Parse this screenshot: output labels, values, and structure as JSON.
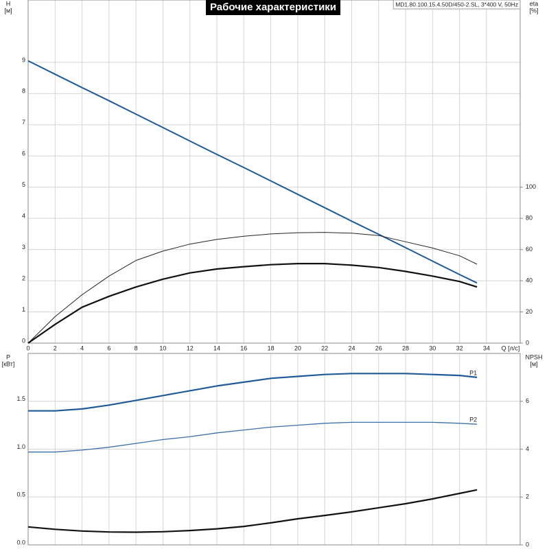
{
  "chart_data": [
    {
      "type": "line",
      "title": "Рабочие характеристики",
      "subtitle": "MD1.80.100.15.4.50D/450-2.SL, 3*400 V, 50Hz",
      "ylabel": "H",
      "yunit": "[м]",
      "y2label": "eta",
      "y2unit": "[%]",
      "xlabel": "Q [л/с]",
      "x": [
        0,
        2,
        4,
        6,
        8,
        10,
        12,
        14,
        16,
        18,
        20,
        22,
        24,
        26,
        28,
        30,
        32,
        33.3
      ],
      "series": [
        {
          "color": "#1f5a96",
          "values": [
            9.05,
            8.62,
            8.19,
            7.77,
            7.34,
            6.91,
            6.48,
            6.05,
            5.63,
            5.2,
            4.77,
            4.34,
            3.91,
            3.49,
            3.06,
            2.63,
            2.2,
            1.93
          ]
        },
        {
          "color": "#222222",
          "axis": "y2",
          "values": [
            0,
            17,
            31,
            43,
            53,
            59,
            63.5,
            66.5,
            68.5,
            70,
            70.8,
            71,
            70.5,
            69,
            65,
            61,
            56,
            50.6
          ]
        },
        {
          "color": "#111111",
          "axis": "y2",
          "values": [
            0,
            12,
            23,
            30,
            36,
            41,
            45,
            47.5,
            49,
            50.3,
            51,
            51,
            50,
            48.5,
            46,
            43,
            39.5,
            36
          ]
        }
      ],
      "xlim": [
        0,
        36.5
      ],
      "xticks": [
        0,
        2,
        4,
        6,
        8,
        10,
        12,
        14,
        16,
        18,
        20,
        22,
        24,
        26,
        28,
        30,
        32,
        34
      ],
      "ylim": [
        0,
        11
      ],
      "yticks": [
        0,
        1,
        2,
        3,
        4,
        5,
        6,
        7,
        8,
        9
      ],
      "y2lim": [
        0,
        220
      ],
      "y2ticks": [
        0,
        20,
        40,
        60,
        80,
        100
      ],
      "grid": true
    },
    {
      "type": "line",
      "ylabel": "P",
      "yunit": "[кВт]",
      "y2label": "NPSH",
      "y2unit": "[м]",
      "x": [
        0,
        2,
        4,
        6,
        8,
        10,
        12,
        14,
        16,
        18,
        20,
        22,
        24,
        26,
        28,
        30,
        32,
        33.3
      ],
      "series": [
        {
          "name": "P1",
          "color": "#1f5a96",
          "values": [
            1.4,
            1.4,
            1.42,
            1.46,
            1.51,
            1.56,
            1.61,
            1.66,
            1.7,
            1.74,
            1.76,
            1.78,
            1.79,
            1.79,
            1.79,
            1.78,
            1.77,
            1.75
          ]
        },
        {
          "name": "P2",
          "color": "#3a6ea5",
          "values": [
            0.97,
            0.97,
            0.99,
            1.02,
            1.06,
            1.1,
            1.13,
            1.17,
            1.2,
            1.23,
            1.25,
            1.27,
            1.28,
            1.28,
            1.28,
            1.28,
            1.27,
            1.26
          ]
        },
        {
          "color": "#111111",
          "axis": "y2",
          "values": [
            0.75,
            0.65,
            0.58,
            0.54,
            0.53,
            0.55,
            0.6,
            0.67,
            0.77,
            0.92,
            1.09,
            1.23,
            1.38,
            1.55,
            1.72,
            1.92,
            2.15,
            2.3
          ]
        }
      ],
      "xlim": [
        0,
        36.5
      ],
      "xticks": [
        0,
        2,
        4,
        6,
        8,
        10,
        12,
        14,
        16,
        18,
        20,
        22,
        24,
        26,
        28,
        30,
        32,
        34
      ],
      "ylim": [
        0,
        2
      ],
      "yticks": [
        {
          "value": 0,
          "label": "0.0"
        },
        0.5,
        {
          "value": 1,
          "label": "1.0"
        },
        1.5
      ],
      "y2lim": [
        0,
        8
      ],
      "y2ticks": [
        0,
        2,
        4,
        6
      ],
      "grid": true
    }
  ]
}
